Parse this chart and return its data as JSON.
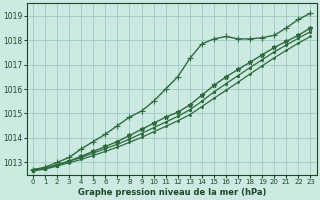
{
  "title": "Graphe pression niveau de la mer (hPa)",
  "background_color": "#cce9e2",
  "plot_bg_color": "#cce9e2",
  "grid_color": "#9eccc4",
  "line_color": "#2d6b3c",
  "text_color": "#1a4a28",
  "ylim": [
    1012.5,
    1019.5
  ],
  "xlim": [
    -0.5,
    23.5
  ],
  "yticks": [
    1013,
    1014,
    1015,
    1016,
    1017,
    1018,
    1019
  ],
  "xticks": [
    0,
    1,
    2,
    3,
    4,
    5,
    6,
    7,
    8,
    9,
    10,
    11,
    12,
    13,
    14,
    15,
    16,
    17,
    18,
    19,
    20,
    21,
    22,
    23
  ],
  "series": [
    {
      "x": [
        0,
        1,
        2,
        3,
        4,
        5,
        6,
        7,
        8,
        9,
        10,
        11,
        12,
        13,
        14,
        15,
        16,
        17,
        18,
        19,
        20,
        21,
        22,
        23
      ],
      "y": [
        1012.7,
        1012.8,
        1013.0,
        1013.2,
        1013.55,
        1013.85,
        1014.15,
        1014.5,
        1014.85,
        1015.1,
        1015.5,
        1016.0,
        1016.5,
        1017.25,
        1017.85,
        1018.05,
        1018.15,
        1018.05,
        1018.05,
        1018.1,
        1018.2,
        1018.5,
        1018.85,
        1019.1
      ],
      "marker": "+",
      "markersize": 4,
      "linewidth": 1.0
    },
    {
      "x": [
        0,
        1,
        2,
        3,
        4,
        5,
        6,
        7,
        8,
        9,
        10,
        11,
        12,
        13,
        14,
        15,
        16,
        17,
        18,
        19,
        20,
        21,
        22,
        23
      ],
      "y": [
        1012.7,
        1012.75,
        1012.9,
        1013.05,
        1013.25,
        1013.45,
        1013.65,
        1013.85,
        1014.1,
        1014.35,
        1014.6,
        1014.85,
        1015.05,
        1015.35,
        1015.75,
        1016.15,
        1016.5,
        1016.8,
        1017.1,
        1017.4,
        1017.7,
        1017.95,
        1018.2,
        1018.5
      ],
      "marker": "*",
      "markersize": 3.5,
      "linewidth": 1.0
    },
    {
      "x": [
        0,
        1,
        2,
        3,
        4,
        5,
        6,
        7,
        8,
        9,
        10,
        11,
        12,
        13,
        14,
        15,
        16,
        17,
        18,
        19,
        20,
        21,
        22,
        23
      ],
      "y": [
        1012.7,
        1012.75,
        1012.9,
        1013.05,
        1013.2,
        1013.38,
        1013.56,
        1013.74,
        1013.95,
        1014.18,
        1014.42,
        1014.65,
        1014.88,
        1015.15,
        1015.5,
        1015.88,
        1016.22,
        1016.55,
        1016.88,
        1017.2,
        1017.52,
        1017.8,
        1018.08,
        1018.35
      ],
      "marker": ".",
      "markersize": 3,
      "linewidth": 0.9
    },
    {
      "x": [
        0,
        1,
        2,
        3,
        4,
        5,
        6,
        7,
        8,
        9,
        10,
        11,
        12,
        13,
        14,
        15,
        16,
        17,
        18,
        19,
        20,
        21,
        22,
        23
      ],
      "y": [
        1012.65,
        1012.72,
        1012.85,
        1012.98,
        1013.12,
        1013.28,
        1013.45,
        1013.62,
        1013.82,
        1014.02,
        1014.25,
        1014.47,
        1014.7,
        1014.95,
        1015.28,
        1015.62,
        1015.95,
        1016.28,
        1016.62,
        1016.95,
        1017.28,
        1017.58,
        1017.88,
        1018.15
      ],
      "marker": ".",
      "markersize": 2.5,
      "linewidth": 0.9
    }
  ]
}
